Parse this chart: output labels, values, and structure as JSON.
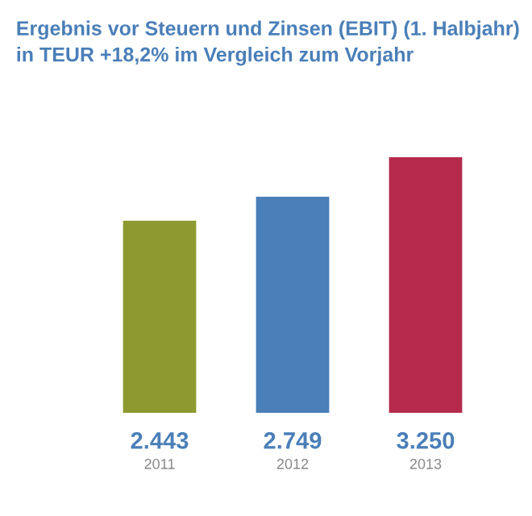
{
  "chart_data": {
    "type": "bar",
    "title": "Ergebnis vor Steuern und Zinsen (EBIT) (1. Halbjahr)\nin TEUR +18,2% im Vergleich zum Vorjahr",
    "categories": [
      "2011",
      "2012",
      "2013"
    ],
    "values": [
      2443,
      2749,
      3250
    ],
    "colors": [
      "#8c9a2f",
      "#4a7fb8",
      "#b52a4c"
    ],
    "value_labels": [
      "2.443",
      "2.749",
      "3.250"
    ]
  }
}
